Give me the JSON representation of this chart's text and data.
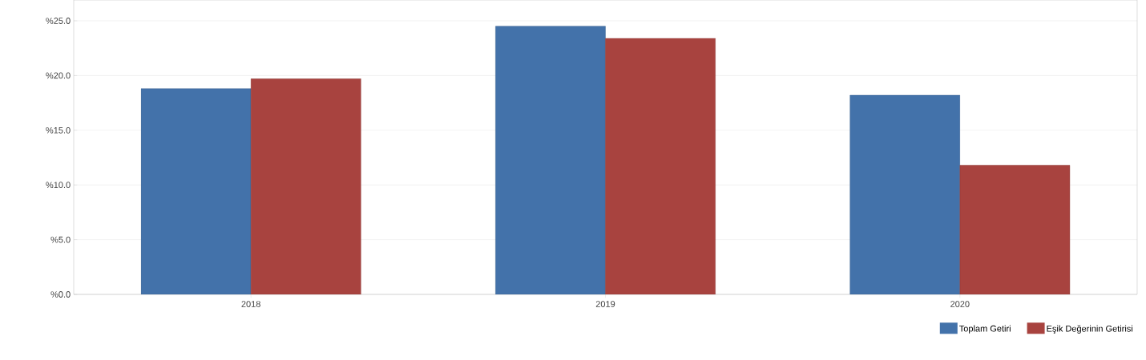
{
  "chart_data": {
    "type": "bar",
    "categories": [
      "2018",
      "2019",
      "2020"
    ],
    "series": [
      {
        "name": "Toplam Getiri",
        "color": "#4372aa",
        "values": [
          18.8,
          24.5,
          18.2
        ]
      },
      {
        "name": "Eşik Değerinin Getirisi",
        "color": "#a8433f",
        "values": [
          19.7,
          23.4,
          11.8
        ]
      }
    ],
    "ylim": [
      0,
      26.9
    ],
    "yticks": [
      {
        "value": 0,
        "label": "%0.0"
      },
      {
        "value": 5,
        "label": "%5.0"
      },
      {
        "value": 10,
        "label": "%10.0"
      },
      {
        "value": 15,
        "label": "%15.0"
      },
      {
        "value": 20,
        "label": "%20.0"
      },
      {
        "value": 25,
        "label": "%25.0"
      }
    ],
    "grid": "y",
    "legend": "bottom right"
  }
}
